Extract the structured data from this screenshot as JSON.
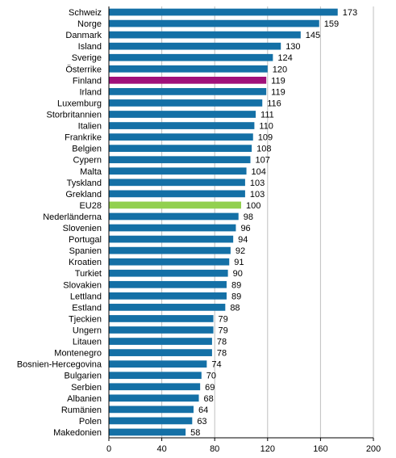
{
  "colors": {
    "default": "#1470A6",
    "highlight": "#A0107A",
    "reference": "#92D050",
    "grid": "#BFBFBF",
    "axis": "#000000"
  },
  "chart_data": {
    "type": "bar",
    "orientation": "horizontal",
    "categories": [
      "Schweiz",
      "Norge",
      "Danmark",
      "Island",
      "Sverige",
      "Österrike",
      "Finland",
      "Irland",
      "Luxemburg",
      "Storbritannien",
      "Italien",
      "Frankrike",
      "Belgien",
      "Cypern",
      "Malta",
      "Tyskland",
      "Grekland",
      "EU28",
      "Nederländerna",
      "Slovenien",
      "Portugal",
      "Spanien",
      "Kroatien",
      "Turkiet",
      "Slovakien",
      "Lettland",
      "Estland",
      "Tjeckien",
      "Ungern",
      "Litauen",
      "Montenegro",
      "Bosnien-Hercegovina",
      "Bulgarien",
      "Serbien",
      "Albanien",
      "Rumänien",
      "Polen",
      "Makedonien"
    ],
    "values": [
      173,
      159,
      145,
      130,
      124,
      120,
      119,
      119,
      116,
      111,
      110,
      109,
      108,
      107,
      104,
      103,
      103,
      100,
      98,
      96,
      94,
      92,
      91,
      90,
      89,
      89,
      88,
      79,
      79,
      78,
      78,
      74,
      70,
      69,
      68,
      64,
      63,
      58
    ],
    "highlight": {
      "Finland": "highlight",
      "EU28": "reference"
    },
    "xlim": [
      0,
      200
    ],
    "xticks": [
      0,
      40,
      80,
      120,
      160,
      200
    ],
    "grid": "vertical",
    "legend": "none",
    "title": "",
    "xlabel": "",
    "ylabel": ""
  }
}
